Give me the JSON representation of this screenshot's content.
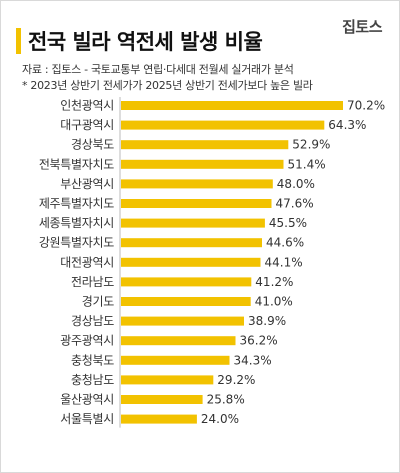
{
  "header": {
    "title": "전국 빌라 역전세 발생 비율",
    "logo": "집토스",
    "source": "자료 : 집토스 - 국토교통부 연립·다세대 전월세 실거래가 분석",
    "note": "* 2023년 상반기 전세가가 2025년 상반기 전세가보다 높은 빌라"
  },
  "colors": {
    "bar": "#f2c200",
    "accent": "#f2c200"
  },
  "chart_data": {
    "type": "bar",
    "orientation": "horizontal",
    "title": "전국 빌라 역전세 발생 비율",
    "xlabel": "",
    "ylabel": "",
    "unit": "%",
    "xlim": [
      0,
      70.2
    ],
    "grid": false,
    "categories": [
      "인천광역시",
      "대구광역시",
      "경상북도",
      "전북특별자치도",
      "부산광역시",
      "제주특별자치도",
      "세종특별자치시",
      "강원특별자치도",
      "대전광역시",
      "전라남도",
      "경기도",
      "경상남도",
      "광주광역시",
      "충청북도",
      "충청남도",
      "울산광역시",
      "서울특별시"
    ],
    "values": [
      70.2,
      64.3,
      52.9,
      51.4,
      48.0,
      47.6,
      45.5,
      44.6,
      44.1,
      41.2,
      41.0,
      38.9,
      36.2,
      34.3,
      29.2,
      25.8,
      24.0
    ],
    "value_labels": [
      "70.2%",
      "64.3%",
      "52.9%",
      "51.4%",
      "48.0%",
      "47.6%",
      "45.5%",
      "44.6%",
      "44.1%",
      "41.2%",
      "41.0%",
      "38.9%",
      "36.2%",
      "34.3%",
      "29.2%",
      "25.8%",
      "24.0%"
    ]
  }
}
